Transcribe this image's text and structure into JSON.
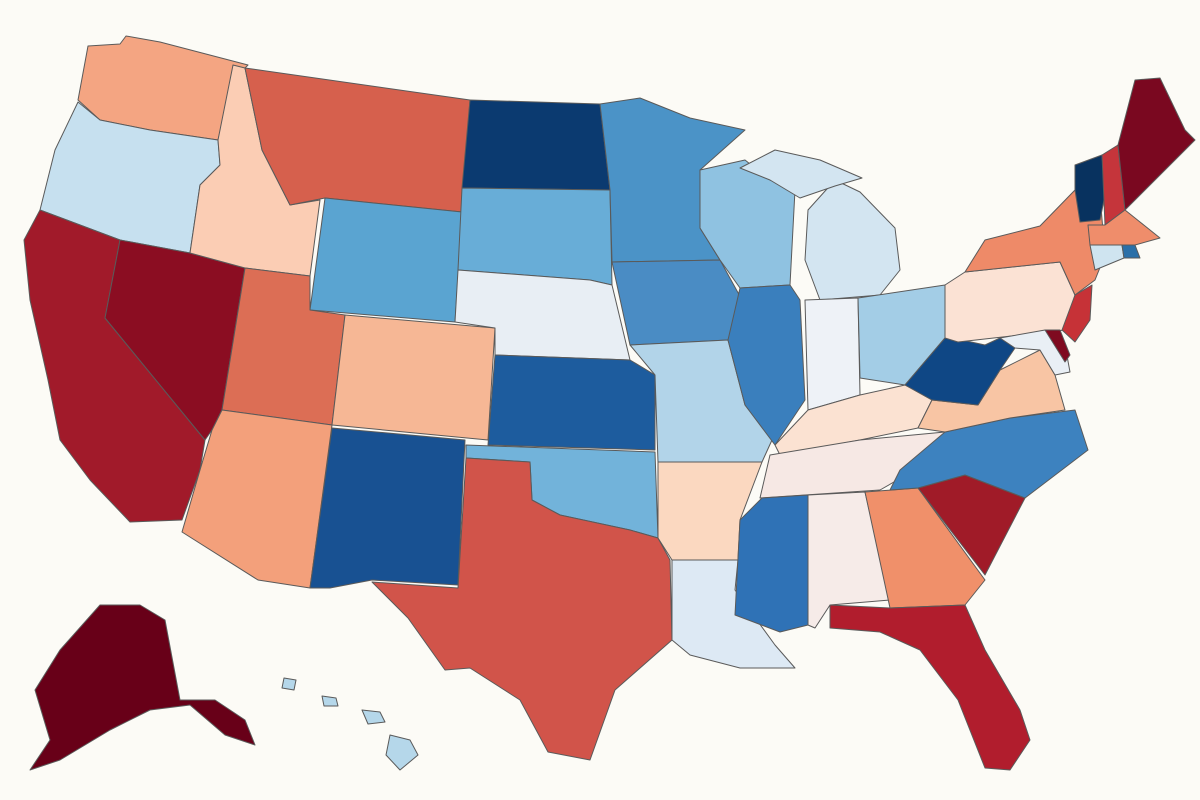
{
  "map": {
    "states": [
      {
        "code": "WA",
        "color": "#f4a582"
      },
      {
        "code": "OR",
        "color": "#c6e0ef"
      },
      {
        "code": "CA",
        "color": "#a11a2a"
      },
      {
        "code": "NV",
        "color": "#8b0d22"
      },
      {
        "code": "ID",
        "color": "#fbcdb4"
      },
      {
        "code": "MT",
        "color": "#d6604d"
      },
      {
        "code": "WY",
        "color": "#5aa4d1"
      },
      {
        "code": "UT",
        "color": "#dc6e55"
      },
      {
        "code": "CO",
        "color": "#f6b795"
      },
      {
        "code": "AZ",
        "color": "#f3a07b"
      },
      {
        "code": "NM",
        "color": "#185192"
      },
      {
        "code": "ND",
        "color": "#0b3a70"
      },
      {
        "code": "SD",
        "color": "#68add7"
      },
      {
        "code": "NE",
        "color": "#e8eef4"
      },
      {
        "code": "KS",
        "color": "#1d5c9e"
      },
      {
        "code": "OK",
        "color": "#72b3da"
      },
      {
        "code": "TX",
        "color": "#d1544a"
      },
      {
        "code": "MN",
        "color": "#4b93c7"
      },
      {
        "code": "IA",
        "color": "#4a8cc4"
      },
      {
        "code": "MO",
        "color": "#b2d4e9"
      },
      {
        "code": "AR",
        "color": "#fbd8c0"
      },
      {
        "code": "LA",
        "color": "#dde9f4"
      },
      {
        "code": "WI",
        "color": "#8fc2e1"
      },
      {
        "code": "IL",
        "color": "#3a7fbd"
      },
      {
        "code": "MI",
        "color": "#d3e5f1"
      },
      {
        "code": "IN",
        "color": "#eef2f7"
      },
      {
        "code": "OH",
        "color": "#a3cde6"
      },
      {
        "code": "KY",
        "color": "#fbe2d2"
      },
      {
        "code": "TN",
        "color": "#f6e8e4"
      },
      {
        "code": "MS",
        "color": "#2f72b6"
      },
      {
        "code": "AL",
        "color": "#f6ebe8"
      },
      {
        "code": "GA",
        "color": "#f0906a"
      },
      {
        "code": "FL",
        "color": "#b11d2d"
      },
      {
        "code": "SC",
        "color": "#a01b28"
      },
      {
        "code": "NC",
        "color": "#3d82bf"
      },
      {
        "code": "VA",
        "color": "#f8c5a4"
      },
      {
        "code": "WV",
        "color": "#0f4785"
      },
      {
        "code": "PA",
        "color": "#fbe2d4"
      },
      {
        "code": "NY",
        "color": "#ee8a68"
      },
      {
        "code": "VT",
        "color": "#08325f"
      },
      {
        "code": "NH",
        "color": "#c5353b"
      },
      {
        "code": "ME",
        "color": "#7a0820"
      },
      {
        "code": "MA",
        "color": "#ef8d6b"
      },
      {
        "code": "CT",
        "color": "#cfe4f0"
      },
      {
        "code": "RI",
        "color": "#2a6fa8"
      },
      {
        "code": "NJ",
        "color": "#c63237"
      },
      {
        "code": "DE",
        "color": "#7f0a20"
      },
      {
        "code": "MD",
        "color": "#e9eff5"
      },
      {
        "code": "AK",
        "color": "#680018"
      },
      {
        "code": "HI",
        "color": "#b5d7ea"
      }
    ]
  }
}
